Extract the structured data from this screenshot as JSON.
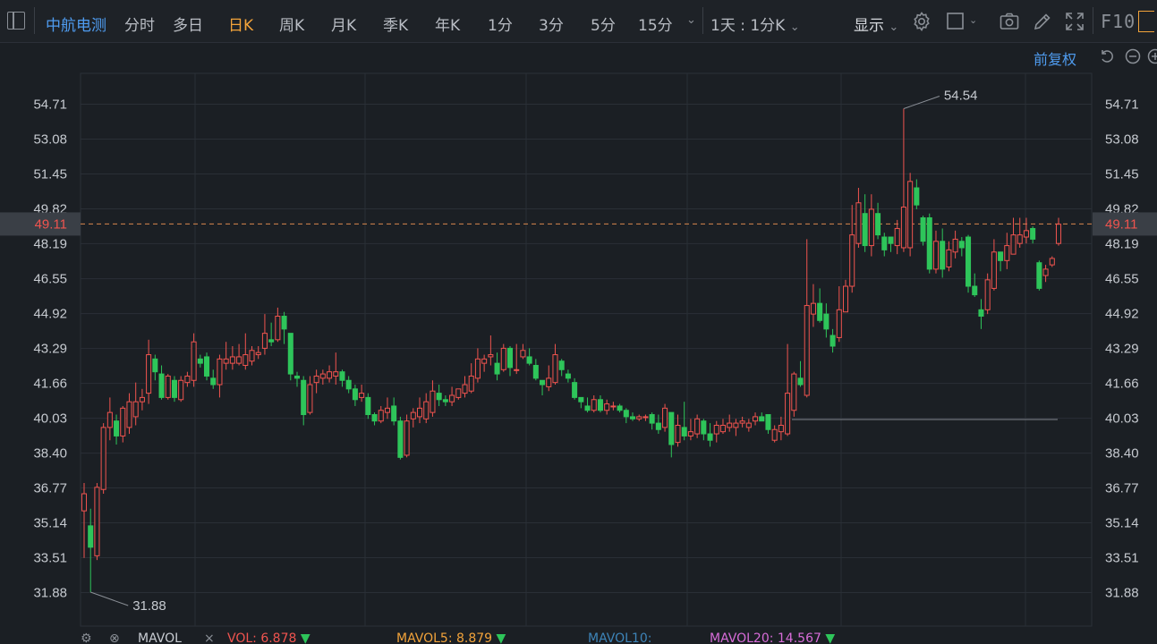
{
  "toolbar": {
    "stock_name": "中航电测",
    "tabs": [
      {
        "label": "分时"
      },
      {
        "label": "多日"
      },
      {
        "label": "日K",
        "active": true
      },
      {
        "label": "周K"
      },
      {
        "label": "月K"
      },
      {
        "label": "季K"
      },
      {
        "label": "年K"
      },
      {
        "label": "1分"
      },
      {
        "label": "3分"
      },
      {
        "label": "5分"
      },
      {
        "label": "15分"
      }
    ],
    "period_selector": "1天 : 1分K",
    "display_label": "显示",
    "f10_label": "F10",
    "icons": [
      "settings-gear-icon",
      "square-icon",
      "camera-icon",
      "pen-icon",
      "expand-icon"
    ]
  },
  "adjust_label": "前复权",
  "chart_data": {
    "type": "candlestick",
    "y_ticks": [
      "54.71",
      "53.08",
      "51.45",
      "49.82",
      "48.19",
      "46.55",
      "44.92",
      "43.29",
      "41.66",
      "40.03",
      "38.40",
      "36.77",
      "35.14",
      "33.51",
      "31.88"
    ],
    "ylim": [
      31.88,
      54.71
    ],
    "current_price": "49.11",
    "high_annotation": "54.54",
    "low_annotation": "31.88",
    "reference_line": 39.97,
    "candles": [
      [
        35.7,
        36.5,
        33.5,
        37.0
      ],
      [
        35.0,
        34.0,
        31.9,
        35.8
      ],
      [
        33.6,
        36.8,
        33.4,
        37.0
      ],
      [
        36.7,
        39.6,
        36.5,
        39.8
      ],
      [
        39.6,
        40.3,
        39.0,
        41.0
      ],
      [
        39.9,
        39.2,
        38.8,
        40.2
      ],
      [
        39.2,
        40.5,
        38.9,
        40.6
      ],
      [
        39.6,
        40.8,
        39.3,
        41.2
      ],
      [
        40.1,
        40.8,
        39.7,
        41.7
      ],
      [
        40.8,
        41.0,
        40.4,
        41.4
      ],
      [
        41.2,
        43.0,
        40.7,
        43.7
      ],
      [
        42.8,
        42.2,
        41.8,
        43.0
      ],
      [
        42.1,
        41.0,
        40.9,
        42.5
      ],
      [
        41.0,
        42.0,
        40.9,
        42.1
      ],
      [
        41.8,
        41.0,
        40.8,
        42.0
      ],
      [
        40.9,
        41.8,
        40.8,
        42.0
      ],
      [
        41.7,
        42.0,
        41.5,
        42.2
      ],
      [
        41.8,
        43.6,
        41.5,
        44.0
      ],
      [
        42.8,
        42.6,
        42.4,
        43.0
      ],
      [
        42.9,
        42.0,
        41.8,
        43.1
      ],
      [
        41.9,
        41.6,
        41.4,
        42.3
      ],
      [
        41.6,
        42.8,
        41.0,
        43.0
      ],
      [
        42.6,
        42.8,
        42.3,
        43.6
      ],
      [
        42.6,
        42.9,
        42.3,
        43.4
      ],
      [
        42.6,
        42.9,
        42.5,
        43.5
      ],
      [
        42.5,
        43.0,
        42.3,
        44.0
      ],
      [
        42.7,
        43.2,
        42.5,
        43.4
      ],
      [
        43.0,
        43.1,
        42.8,
        43.4
      ],
      [
        43.3,
        44.0,
        43.0,
        44.9
      ],
      [
        43.7,
        43.6,
        43.4,
        44.5
      ],
      [
        43.7,
        44.8,
        43.6,
        45.2
      ],
      [
        44.8,
        44.2,
        43.5,
        45.0
      ],
      [
        44.0,
        42.1,
        41.8,
        44.0
      ],
      [
        42.0,
        41.9,
        41.5,
        42.2
      ],
      [
        41.8,
        40.2,
        39.7,
        42.0
      ],
      [
        40.3,
        41.6,
        40.2,
        42.0
      ],
      [
        41.7,
        42.0,
        41.2,
        42.3
      ],
      [
        41.9,
        42.1,
        41.6,
        42.3
      ],
      [
        41.9,
        42.2,
        41.7,
        42.5
      ],
      [
        42.0,
        42.2,
        41.6,
        43.1
      ],
      [
        42.2,
        41.8,
        41.5,
        42.3
      ],
      [
        41.8,
        41.4,
        41.2,
        42.0
      ],
      [
        41.4,
        40.9,
        40.6,
        41.6
      ],
      [
        41.0,
        41.2,
        40.8,
        41.6
      ],
      [
        41.0,
        40.2,
        40.0,
        41.2
      ],
      [
        40.2,
        39.9,
        39.7,
        40.3
      ],
      [
        39.9,
        40.4,
        39.8,
        40.6
      ],
      [
        40.3,
        40.5,
        40.0,
        41.0
      ],
      [
        40.6,
        39.9,
        39.7,
        41.0
      ],
      [
        39.9,
        38.2,
        38.1,
        40.1
      ],
      [
        38.3,
        39.9,
        38.2,
        40.2
      ],
      [
        40.0,
        40.3,
        39.6,
        40.5
      ],
      [
        40.1,
        40.5,
        39.8,
        41.0
      ],
      [
        40.0,
        40.8,
        39.8,
        41.2
      ],
      [
        40.3,
        41.3,
        40.1,
        41.8
      ],
      [
        41.2,
        40.9,
        40.6,
        41.6
      ],
      [
        40.9,
        40.8,
        40.6,
        41.1
      ],
      [
        40.8,
        41.1,
        40.6,
        41.5
      ],
      [
        41.0,
        41.4,
        40.9,
        41.4
      ],
      [
        41.2,
        41.6,
        41.0,
        42.0
      ],
      [
        41.3,
        42.0,
        41.2,
        42.6
      ],
      [
        41.9,
        42.8,
        41.7,
        43.3
      ],
      [
        42.6,
        42.8,
        42.2,
        43.0
      ],
      [
        42.9,
        43.0,
        42.5,
        43.9
      ],
      [
        42.6,
        42.1,
        41.8,
        43.1
      ],
      [
        42.3,
        43.3,
        42.2,
        43.5
      ],
      [
        43.3,
        42.4,
        42.0,
        43.4
      ],
      [
        42.3,
        42.3,
        42.1,
        43.5
      ],
      [
        42.9,
        43.2,
        42.8,
        43.5
      ],
      [
        42.9,
        42.6,
        42.5,
        43.3
      ],
      [
        42.5,
        41.9,
        41.8,
        42.8
      ],
      [
        41.8,
        41.6,
        41.1,
        41.8
      ],
      [
        41.5,
        41.9,
        41.3,
        42.5
      ],
      [
        41.7,
        43.0,
        41.6,
        43.5
      ],
      [
        42.7,
        42.3,
        42.0,
        42.8
      ],
      [
        42.1,
        41.9,
        41.7,
        42.3
      ],
      [
        41.7,
        41.0,
        40.9,
        41.9
      ],
      [
        41.0,
        40.8,
        40.5,
        41.0
      ],
      [
        40.6,
        40.4,
        40.3,
        41.0
      ],
      [
        40.4,
        40.9,
        40.3,
        41.1
      ],
      [
        40.9,
        40.4,
        40.3,
        41.1
      ],
      [
        40.4,
        40.7,
        40.2,
        40.9
      ],
      [
        40.6,
        40.6,
        40.4,
        40.8
      ],
      [
        40.6,
        40.4,
        40.3,
        40.7
      ],
      [
        40.4,
        40.1,
        39.8,
        40.5
      ],
      [
        40.1,
        40.0,
        39.9,
        40.3
      ],
      [
        40.0,
        40.1,
        39.9,
        40.2
      ],
      [
        40.1,
        40.1,
        39.9,
        40.2
      ],
      [
        40.2,
        39.8,
        39.5,
        40.3
      ],
      [
        39.8,
        39.5,
        39.3,
        40.2
      ],
      [
        39.6,
        40.5,
        39.4,
        40.7
      ],
      [
        40.3,
        38.8,
        38.2,
        40.3
      ],
      [
        38.9,
        39.7,
        38.7,
        40.2
      ],
      [
        39.6,
        39.2,
        39.0,
        40.8
      ],
      [
        39.2,
        39.4,
        39.0,
        40.0
      ],
      [
        39.3,
        40.0,
        39.1,
        40.2
      ],
      [
        39.9,
        39.3,
        39.0,
        40.0
      ],
      [
        39.3,
        39.0,
        38.7,
        39.8
      ],
      [
        39.3,
        39.7,
        38.9,
        39.9
      ],
      [
        39.4,
        39.7,
        39.3,
        40.0
      ],
      [
        39.6,
        39.8,
        39.4,
        40.2
      ],
      [
        39.6,
        39.8,
        39.2,
        40.0
      ],
      [
        39.8,
        39.9,
        39.6,
        40.1
      ],
      [
        39.6,
        39.8,
        39.4,
        40.0
      ],
      [
        39.9,
        40.1,
        39.7,
        40.3
      ],
      [
        40.1,
        39.9,
        39.9,
        40.3
      ],
      [
        40.2,
        39.5,
        39.3,
        40.2
      ],
      [
        39.0,
        39.5,
        38.9,
        39.7
      ],
      [
        39.4,
        39.7,
        39.0,
        40.1
      ],
      [
        39.3,
        41.2,
        39.2,
        43.5
      ],
      [
        40.4,
        42.1,
        40.1,
        42.2
      ],
      [
        41.9,
        41.6,
        41.5,
        42.7
      ],
      [
        41.1,
        45.3,
        41.0,
        48.4
      ],
      [
        44.9,
        45.4,
        44.3,
        46.3
      ],
      [
        45.4,
        44.6,
        44.5,
        46.1
      ],
      [
        44.9,
        44.2,
        43.8,
        45.4
      ],
      [
        43.9,
        43.4,
        43.1,
        44.2
      ],
      [
        43.8,
        45.1,
        43.6,
        46.2
      ],
      [
        45.0,
        46.2,
        45.0,
        46.5
      ],
      [
        46.2,
        48.6,
        45.9,
        50.0
      ],
      [
        48.2,
        50.1,
        48.0,
        50.8
      ],
      [
        49.6,
        48.1,
        47.8,
        50.5
      ],
      [
        48.1,
        49.8,
        47.6,
        50.5
      ],
      [
        49.6,
        48.6,
        48.4,
        50.1
      ],
      [
        48.5,
        47.9,
        47.6,
        48.7
      ],
      [
        48.5,
        48.2,
        47.8,
        48.5
      ],
      [
        48.1,
        48.9,
        47.7,
        49.3
      ],
      [
        48.0,
        49.9,
        47.8,
        54.5
      ],
      [
        48.0,
        51.1,
        47.6,
        51.5
      ],
      [
        50.8,
        50.0,
        49.8,
        51.2
      ],
      [
        49.4,
        48.3,
        48.1,
        49.5
      ],
      [
        49.4,
        47.0,
        46.8,
        49.6
      ],
      [
        47.0,
        48.3,
        46.8,
        48.8
      ],
      [
        48.3,
        47.0,
        46.6,
        48.9
      ],
      [
        47.1,
        47.9,
        46.9,
        48.3
      ],
      [
        47.8,
        48.4,
        47.5,
        48.8
      ],
      [
        48.3,
        48.0,
        47.6,
        48.5
      ],
      [
        48.5,
        46.2,
        45.9,
        48.6
      ],
      [
        46.2,
        45.8,
        45.7,
        46.8
      ],
      [
        45.1,
        44.8,
        44.2,
        45.6
      ],
      [
        45.1,
        46.5,
        44.9,
        46.8
      ],
      [
        46.1,
        47.8,
        46.0,
        48.4
      ],
      [
        47.8,
        47.4,
        46.9,
        47.8
      ],
      [
        47.4,
        48.1,
        47.0,
        48.7
      ],
      [
        47.7,
        48.6,
        47.7,
        49.4
      ],
      [
        48.2,
        48.6,
        48.0,
        49.4
      ],
      [
        48.5,
        48.8,
        48.2,
        49.4
      ],
      [
        48.9,
        48.4,
        48.2,
        49.0
      ],
      [
        47.3,
        46.1,
        46.0,
        47.4
      ],
      [
        46.7,
        47.0,
        46.4,
        47.2
      ],
      [
        47.2,
        47.5,
        47.1,
        47.6
      ],
      [
        48.2,
        49.1,
        48.1,
        49.4
      ]
    ]
  },
  "volume_bar": {
    "mavol_label": "MAVOL",
    "vol": "VOL: 6.878",
    "mavol5": "MAVOL5: 8.879",
    "mavol10": "MAVOL10:",
    "mavol20": "MAVOL20: 14.567",
    "colors": {
      "vol": "#f0544f",
      "mavol5": "#f2a33a",
      "mavol10": "#3d84b8",
      "mavol20": "#d76cd8"
    }
  },
  "colors": {
    "up": "#f0544f",
    "down": "#2ec55a",
    "accent": "#4f9cf0",
    "active_tab": "#f2a33a"
  }
}
